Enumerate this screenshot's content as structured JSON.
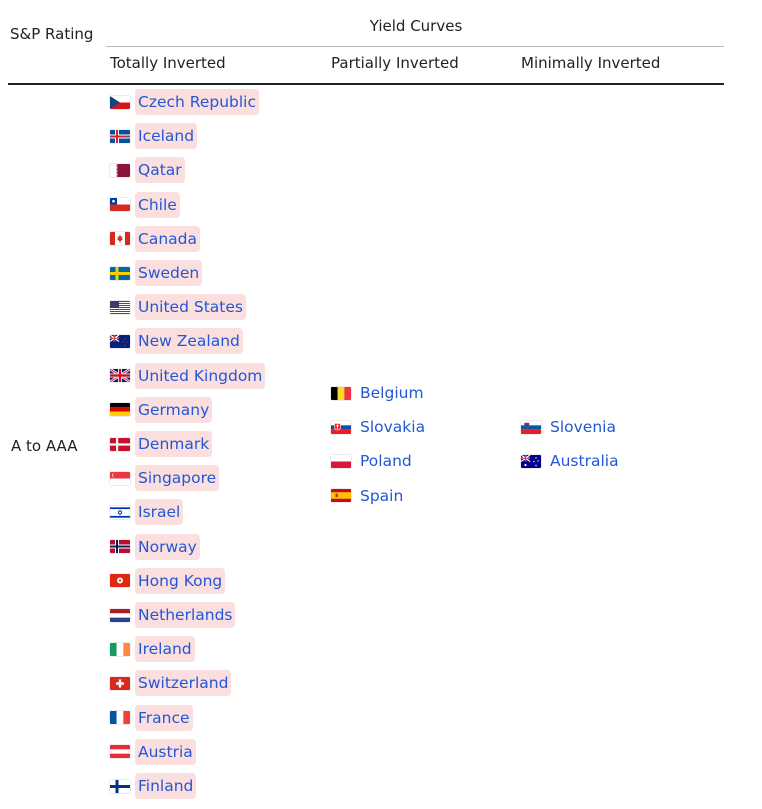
{
  "header": {
    "rating_label": "S&P Rating",
    "group_title": "Yield Curves",
    "columns": [
      "Totally Inverted",
      "Partially Inverted",
      "Minimally Inverted"
    ]
  },
  "row": {
    "rating": "A to AAA",
    "totally_inverted": [
      {
        "name": "Czech Republic",
        "flag": "cz"
      },
      {
        "name": "Iceland",
        "flag": "is"
      },
      {
        "name": "Qatar",
        "flag": "qa"
      },
      {
        "name": "Chile",
        "flag": "cl"
      },
      {
        "name": "Canada",
        "flag": "ca"
      },
      {
        "name": "Sweden",
        "flag": "se"
      },
      {
        "name": "United States",
        "flag": "us"
      },
      {
        "name": "New Zealand",
        "flag": "nz"
      },
      {
        "name": "United Kingdom",
        "flag": "gb"
      },
      {
        "name": "Germany",
        "flag": "de"
      },
      {
        "name": "Denmark",
        "flag": "dk"
      },
      {
        "name": "Singapore",
        "flag": "sg"
      },
      {
        "name": "Israel",
        "flag": "il"
      },
      {
        "name": "Norway",
        "flag": "no"
      },
      {
        "name": "Hong Kong",
        "flag": "hk"
      },
      {
        "name": "Netherlands",
        "flag": "nl"
      },
      {
        "name": "Ireland",
        "flag": "ie"
      },
      {
        "name": "Switzerland",
        "flag": "ch"
      },
      {
        "name": "France",
        "flag": "fr"
      },
      {
        "name": "Austria",
        "flag": "at"
      },
      {
        "name": "Finland",
        "flag": "fi"
      }
    ],
    "partially_inverted": [
      {
        "name": "Belgium",
        "flag": "be"
      },
      {
        "name": "Slovakia",
        "flag": "sk"
      },
      {
        "name": "Poland",
        "flag": "pl"
      },
      {
        "name": "Spain",
        "flag": "es"
      }
    ],
    "minimally_inverted": [
      {
        "name": "Slovenia",
        "flag": "si"
      },
      {
        "name": "Australia",
        "flag": "au"
      }
    ]
  },
  "colors": {
    "link": "#2357d6",
    "highlight": "#fbdede"
  }
}
